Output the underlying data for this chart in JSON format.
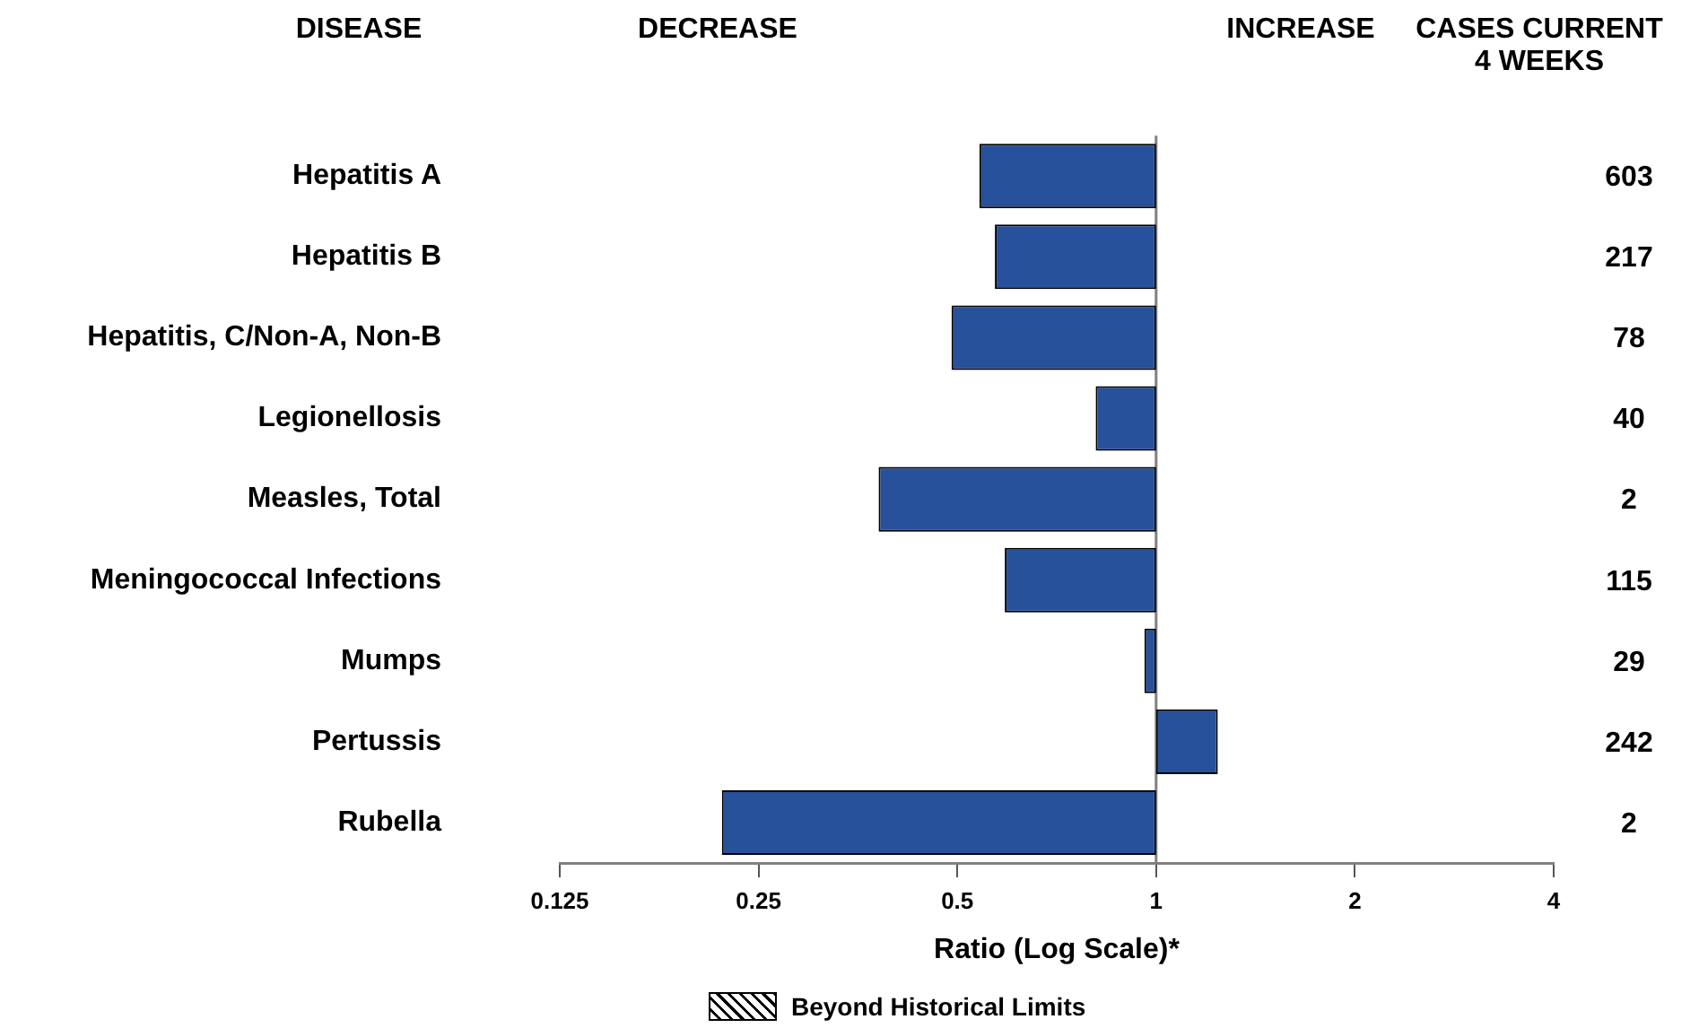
{
  "chart_data": {
    "type": "bar",
    "orientation": "horizontal",
    "ylabel": "DISEASE",
    "xlabel": "Ratio (Log Scale)*",
    "categories": [
      "Hepatitis A",
      "Hepatitis B",
      "Hepatitis, C/Non-A, Non-B",
      "Legionellosis",
      "Measles, Total",
      "Meningococcal Infections",
      "Mumps",
      "Pertussis",
      "Rubella"
    ],
    "base": [
      1,
      1,
      1,
      1,
      1,
      1,
      1,
      1,
      1
    ],
    "values": [
      -0.46,
      -0.43,
      -0.51,
      -0.19,
      -0.62,
      -0.41,
      -0.04,
      0.24,
      -0.78
    ],
    "color": "#27519b",
    "log": "x",
    "xlim": [
      0.125,
      4
    ],
    "xticks": [
      0.125,
      0.25,
      0.5,
      1,
      2,
      4
    ],
    "grid": false,
    "ref_lines": [
      {
        "axis": "x",
        "value": 1,
        "color": "#808080"
      }
    ],
    "annotations": [
      "DECREASE",
      "INCREASE",
      "CASES CURRENT 4 WEEKS",
      "603",
      "217",
      "78",
      "40",
      "2",
      "115",
      "29",
      "242",
      "2",
      "Beyond Historical Limits"
    ]
  }
}
